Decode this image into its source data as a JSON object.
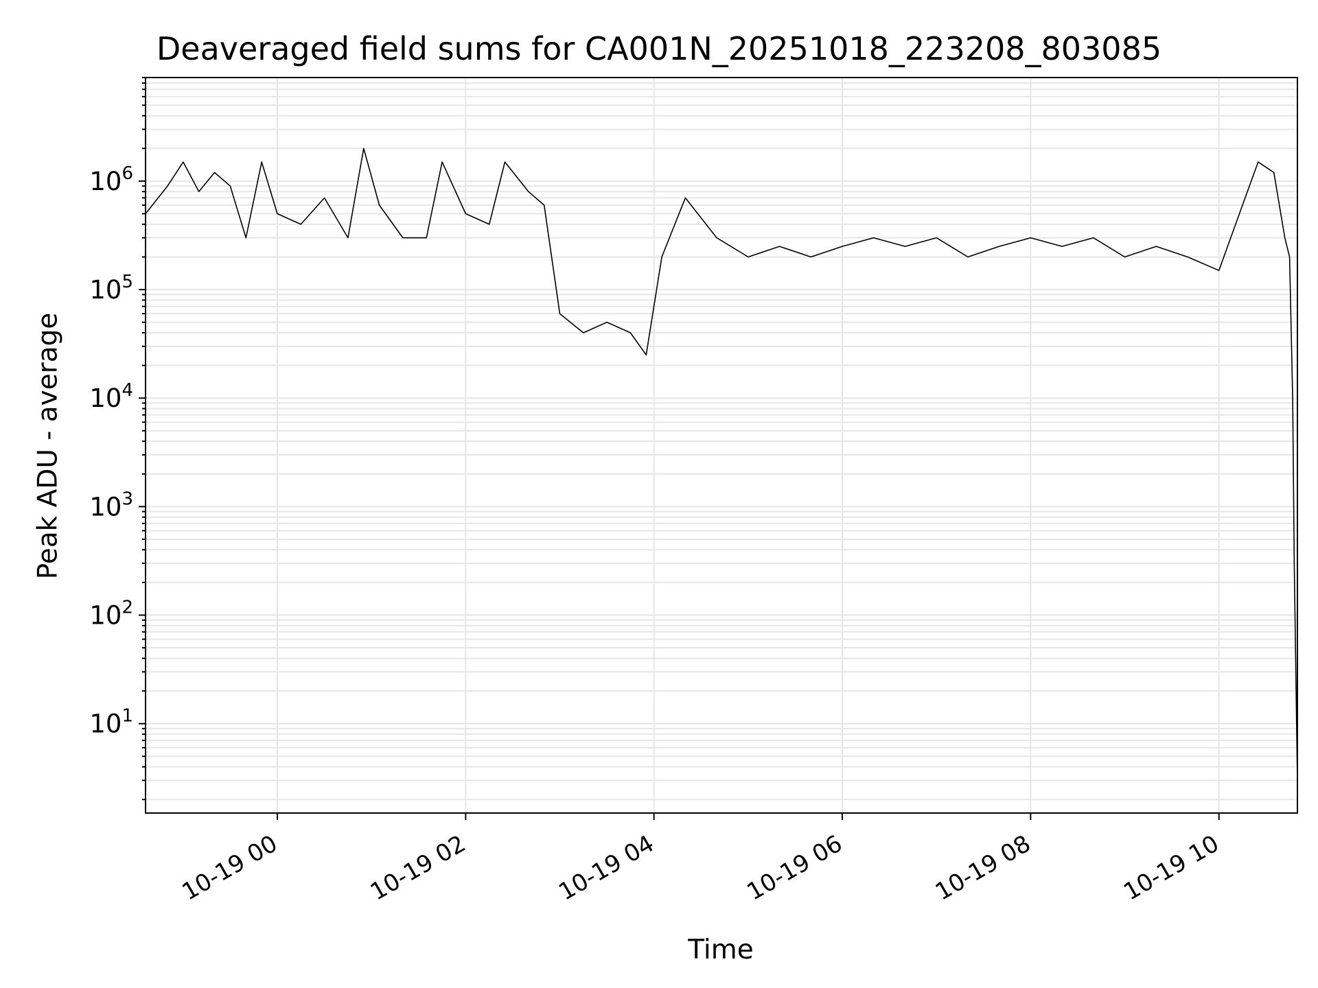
{
  "chart_data": {
    "type": "line",
    "title": "Deaveraged field sums for CA001N_20251018_223208_803085",
    "xlabel": "Time",
    "ylabel": "Peak ADU - average",
    "y_scale": "log",
    "ylim": [
      1.5,
      9000000
    ],
    "xlim": [
      "2025-10-18 22:36",
      "2025-10-19 10:50"
    ],
    "grid": true,
    "line_color": "#000000",
    "grid_color": "#e6e6e6",
    "x_tick_labels": [
      "10-19 00",
      "10-19 02",
      "10-19 04",
      "10-19 06",
      "10-19 08",
      "10-19 10"
    ],
    "x_ticks": [
      "2025-10-19 00:00",
      "2025-10-19 02:00",
      "2025-10-19 04:00",
      "2025-10-19 06:00",
      "2025-10-19 08:00",
      "2025-10-19 10:00"
    ],
    "y_ticks": [
      10,
      100,
      1000,
      10000,
      100000,
      1000000
    ],
    "y_tick_labels": [
      {
        "base": "10",
        "exp": "1"
      },
      {
        "base": "10",
        "exp": "2"
      },
      {
        "base": "10",
        "exp": "3"
      },
      {
        "base": "10",
        "exp": "4"
      },
      {
        "base": "10",
        "exp": "5"
      },
      {
        "base": "10",
        "exp": "6"
      }
    ],
    "series": [
      {
        "x": [
          "2025-10-18 22:36",
          "2025-10-18 22:50",
          "2025-10-18 23:00",
          "2025-10-18 23:10",
          "2025-10-18 23:20",
          "2025-10-18 23:30",
          "2025-10-18 23:40",
          "2025-10-18 23:50",
          "2025-10-19 00:00",
          "2025-10-19 00:15",
          "2025-10-19 00:30",
          "2025-10-19 00:45",
          "2025-10-19 00:55",
          "2025-10-19 01:05",
          "2025-10-19 01:20",
          "2025-10-19 01:35",
          "2025-10-19 01:45",
          "2025-10-19 02:00",
          "2025-10-19 02:15",
          "2025-10-19 02:25",
          "2025-10-19 02:40",
          "2025-10-19 02:50",
          "2025-10-19 03:00",
          "2025-10-19 03:15",
          "2025-10-19 03:30",
          "2025-10-19 03:45",
          "2025-10-19 03:55",
          "2025-10-19 04:05",
          "2025-10-19 04:20",
          "2025-10-19 04:40",
          "2025-10-19 05:00",
          "2025-10-19 05:20",
          "2025-10-19 05:40",
          "2025-10-19 06:00",
          "2025-10-19 06:20",
          "2025-10-19 06:40",
          "2025-10-19 07:00",
          "2025-10-19 07:20",
          "2025-10-19 07:40",
          "2025-10-19 08:00",
          "2025-10-19 08:20",
          "2025-10-19 08:40",
          "2025-10-19 09:00",
          "2025-10-19 09:20",
          "2025-10-19 09:40",
          "2025-10-19 10:00",
          "2025-10-19 10:15",
          "2025-10-19 10:25",
          "2025-10-19 10:35",
          "2025-10-19 10:42",
          "2025-10-19 10:45",
          "2025-10-19 10:47",
          "2025-10-19 10:48",
          "2025-10-19 10:50"
        ],
        "y": [
          500000,
          900000,
          1500000,
          800000,
          1200000,
          900000,
          300000,
          1500000,
          500000,
          400000,
          700000,
          300000,
          2000000,
          600000,
          300000,
          300000,
          1500000,
          500000,
          400000,
          1500000,
          800000,
          600000,
          60000,
          40000,
          50000,
          40000,
          25000,
          200000,
          700000,
          300000,
          200000,
          250000,
          200000,
          250000,
          300000,
          250000,
          300000,
          200000,
          250000,
          300000,
          250000,
          300000,
          200000,
          250000,
          200000,
          150000,
          600000,
          1500000,
          1200000,
          300000,
          200000,
          10000,
          300,
          3
        ]
      }
    ]
  }
}
